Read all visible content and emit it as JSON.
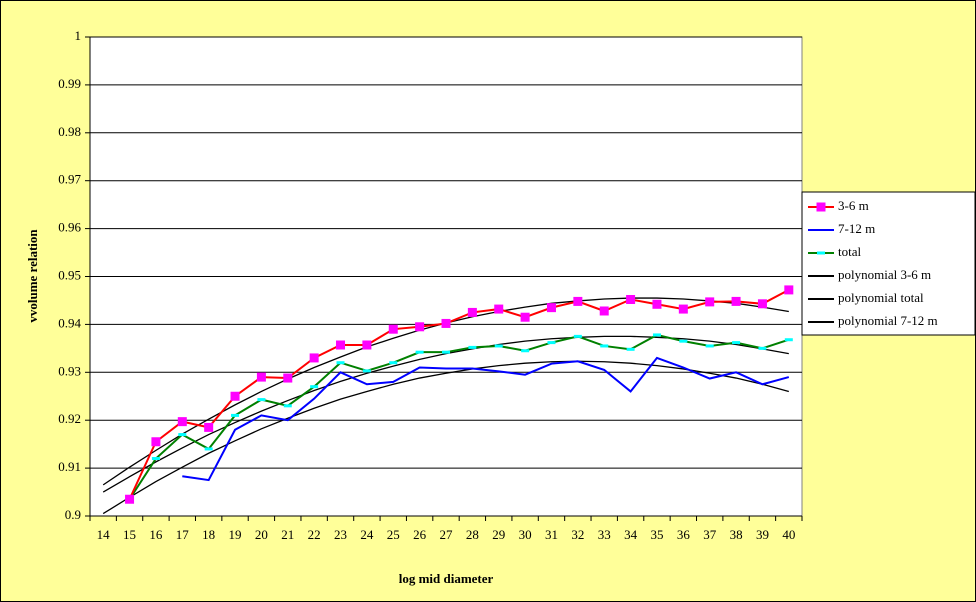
{
  "chart_data": {
    "type": "line",
    "x_label": "log mid diameter",
    "y_label": "vvolume relation",
    "categories": [
      14,
      15,
      16,
      17,
      18,
      19,
      20,
      21,
      22,
      23,
      24,
      25,
      26,
      27,
      28,
      29,
      30,
      31,
      32,
      33,
      34,
      35,
      36,
      37,
      38,
      39,
      40
    ],
    "ylim": [
      0.9,
      1
    ],
    "yticks": [
      0.9,
      0.91,
      0.92,
      0.93,
      0.94,
      0.95,
      0.96,
      0.97,
      0.98,
      0.99,
      1
    ],
    "grid": true,
    "legend": "right",
    "series": [
      {
        "name": "3-6 m",
        "color": "#ff0000",
        "marker": "square",
        "marker_color": "#ff00ff",
        "values": [
          null,
          0.9035,
          0.9155,
          0.9197,
          0.9185,
          0.925,
          0.929,
          0.9288,
          0.933,
          0.9357,
          0.9357,
          0.939,
          0.9395,
          0.9402,
          0.9425,
          0.9432,
          0.9415,
          0.9435,
          0.9448,
          0.9428,
          0.9452,
          0.9442,
          0.9432,
          0.9447,
          0.9448,
          0.9443,
          0.9472
        ]
      },
      {
        "name": "7-12 m",
        "color": "#0000ff",
        "values": [
          null,
          null,
          null,
          0.9083,
          0.9075,
          0.918,
          0.921,
          0.92,
          0.9245,
          0.93,
          0.9275,
          0.928,
          0.931,
          0.9308,
          0.9308,
          0.9302,
          0.9295,
          0.9318,
          0.9323,
          0.9305,
          0.926,
          0.933,
          0.931,
          0.9287,
          0.93,
          0.9275,
          0.929
        ]
      },
      {
        "name": "total",
        "color": "#008000",
        "marker": "dash",
        "marker_color": "#00ffff",
        "values": [
          null,
          0.9035,
          0.912,
          0.917,
          0.914,
          0.921,
          0.9243,
          0.923,
          0.927,
          0.932,
          0.9303,
          0.932,
          0.9342,
          0.9342,
          0.9352,
          0.9355,
          0.9345,
          0.9362,
          0.9375,
          0.9355,
          0.9348,
          0.9378,
          0.9365,
          0.9355,
          0.9362,
          0.935,
          0.9368
        ]
      },
      {
        "name": "polynomial 3-6 m",
        "color": "#000000",
        "values": [
          0.9065,
          0.9102,
          0.9137,
          0.9171,
          0.9202,
          0.9232,
          0.926,
          0.9286,
          0.931,
          0.9332,
          0.9353,
          0.9371,
          0.9388,
          0.9403,
          0.9416,
          0.9427,
          0.9436,
          0.9444,
          0.9449,
          0.9453,
          0.9455,
          0.9455,
          0.9453,
          0.9449,
          0.9444,
          0.9436,
          0.9427
        ]
      },
      {
        "name": "polynomial total",
        "color": "#000000",
        "values": [
          0.905,
          0.9082,
          0.9113,
          0.9142,
          0.917,
          0.9195,
          0.9219,
          0.9241,
          0.9262,
          0.9281,
          0.9298,
          0.9313,
          0.9327,
          0.9339,
          0.9349,
          0.9358,
          0.9365,
          0.937,
          0.9373,
          0.9375,
          0.9375,
          0.9373,
          0.937,
          0.9365,
          0.9358,
          0.9349,
          0.9339
        ]
      },
      {
        "name": "polynomial 7-12 m",
        "color": "#000000",
        "values": [
          0.9005,
          0.9039,
          0.9072,
          0.9102,
          0.9131,
          0.9157,
          0.9182,
          0.9204,
          0.9225,
          0.9244,
          0.926,
          0.9275,
          0.9288,
          0.9298,
          0.9307,
          0.9314,
          0.9319,
          0.9322,
          0.9323,
          0.9322,
          0.9319,
          0.9314,
          0.9307,
          0.9298,
          0.9288,
          0.9275,
          0.926
        ]
      }
    ]
  }
}
